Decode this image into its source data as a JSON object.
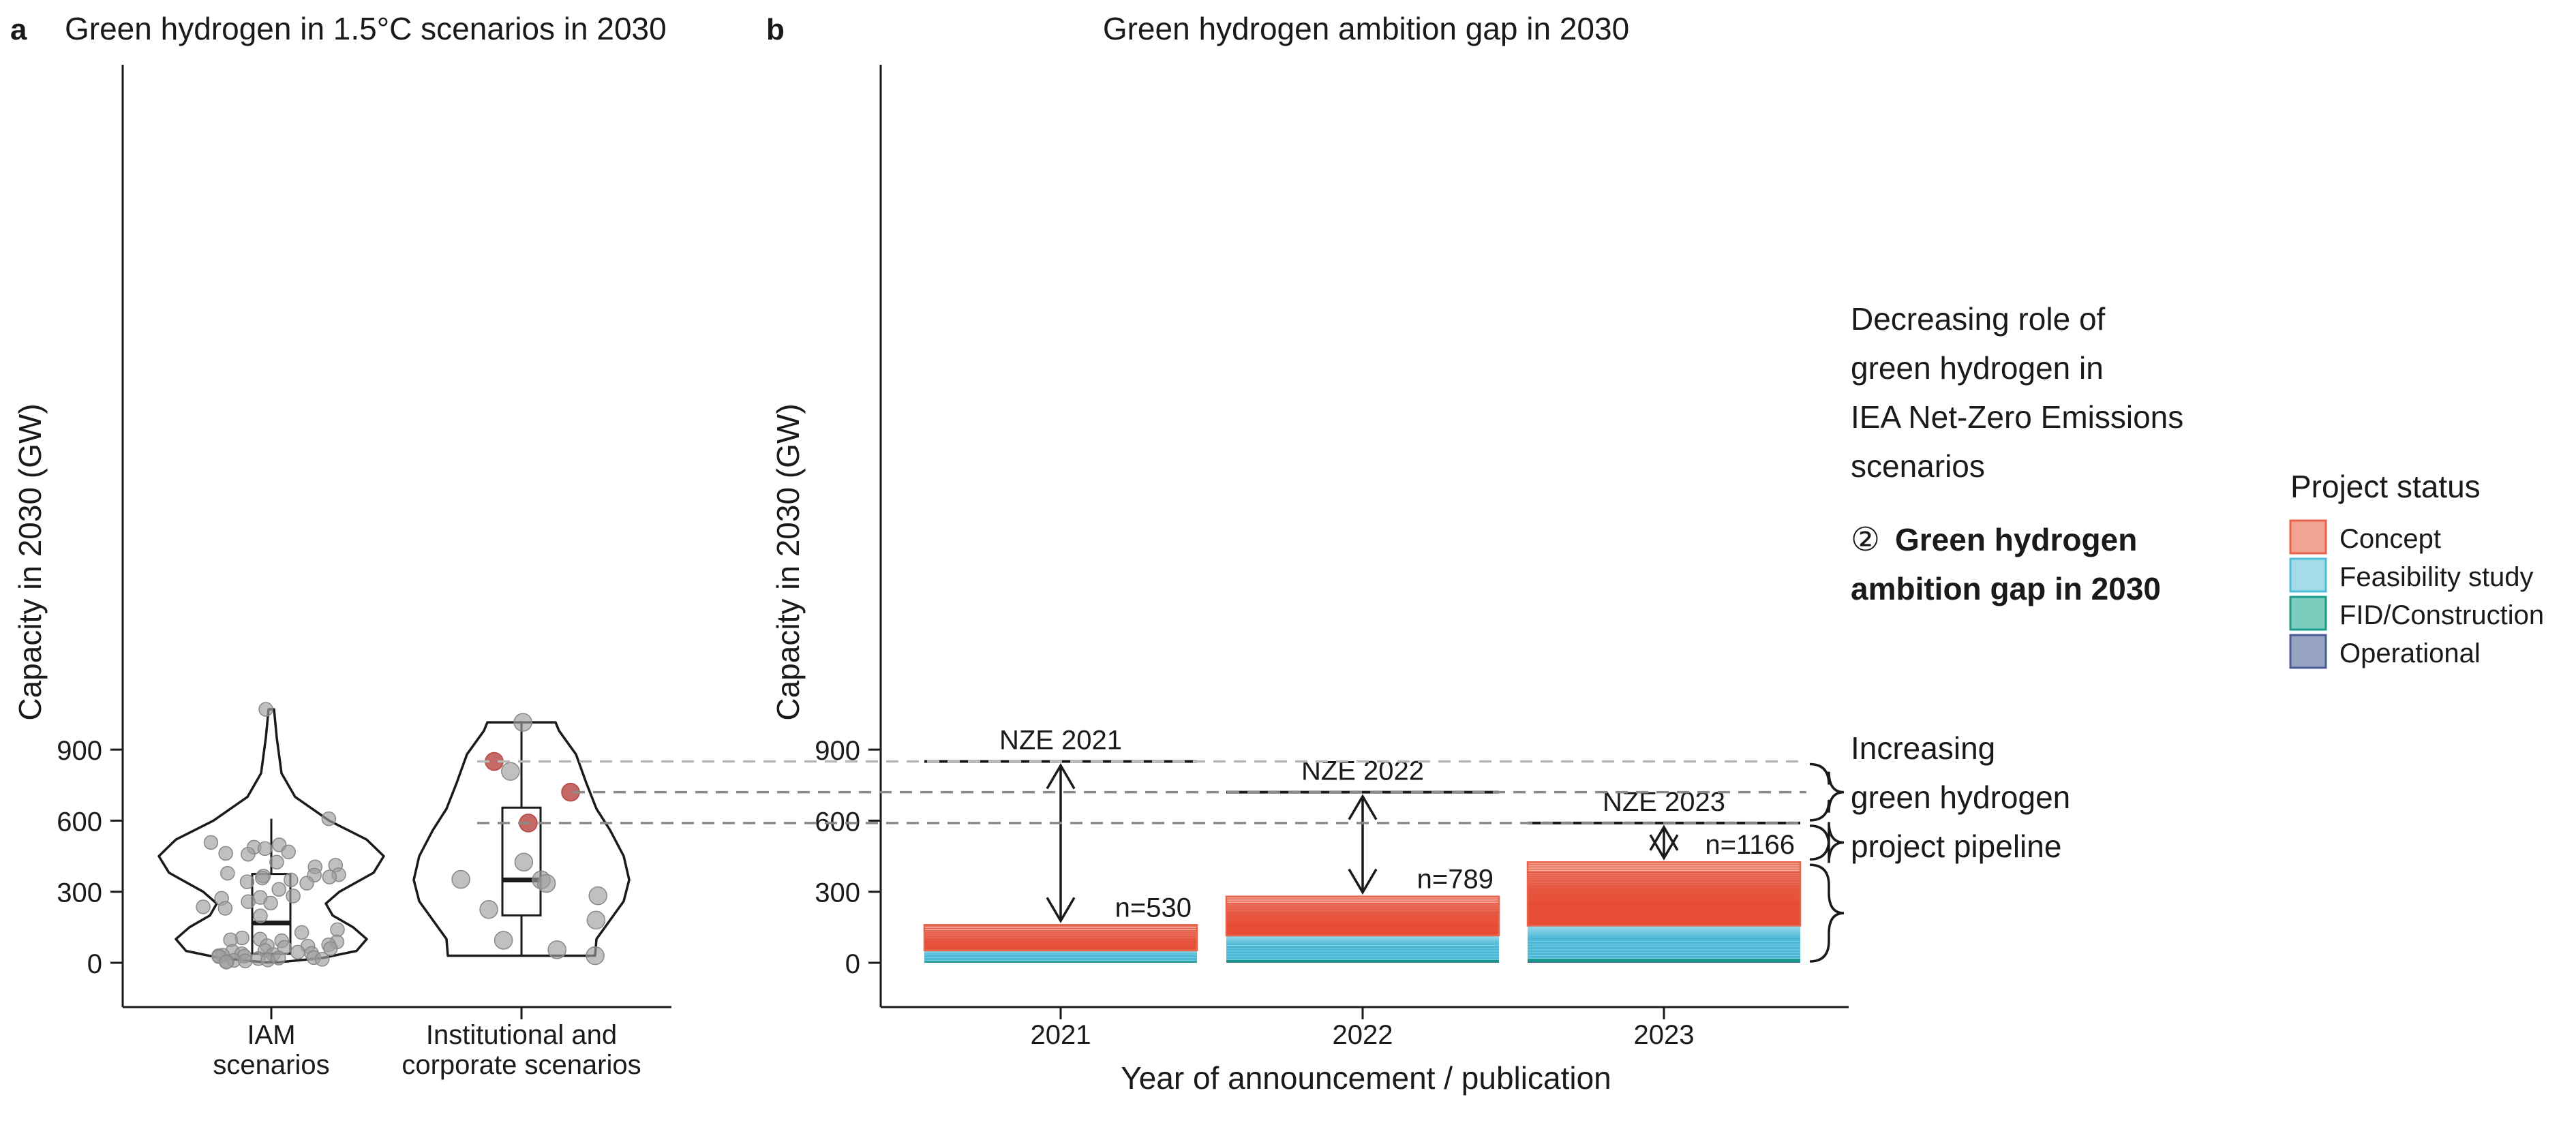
{
  "chart_data": [
    {
      "panel_letter": "a",
      "title": "Green hydrogen in 1.5°C scenarios in 2030",
      "type": "violin",
      "ylabel": "Capacity in 2030 (GW)",
      "ylim": [
        -35,
        1115
      ],
      "yticks": [
        0,
        300,
        600,
        900
      ],
      "categories": [
        "IAM\nscenarios",
        "Institutional and\ncorporate scenarios"
      ],
      "groups": [
        {
          "name": "IAM scenarios",
          "box": {
            "q1": 38,
            "median": 168,
            "q3": 375,
            "whisker_low": 2,
            "whisker_high": 608
          },
          "violin_range": [
            2,
            1070
          ],
          "points": [
            1070,
            608,
            508,
            498,
            488,
            482,
            468,
            462,
            458,
            425,
            412,
            405,
            378,
            372,
            370,
            366,
            362,
            358,
            350,
            342,
            336,
            310,
            282,
            276,
            272,
            258,
            252,
            236,
            230,
            198,
            140,
            128,
            105,
            100,
            97,
            93,
            88,
            76,
            72,
            70,
            65,
            60,
            52,
            48,
            45,
            40,
            38,
            35,
            32,
            30,
            28,
            26,
            22,
            20,
            18,
            15,
            12,
            10,
            8,
            5,
            3
          ],
          "color": "#9e9e9e"
        },
        {
          "name": "Institutional and corporate scenarios",
          "box": {
            "q1": 200,
            "median": 350,
            "q3": 655,
            "whisker_low": 30,
            "whisker_high": 1015
          },
          "violin_range": [
            30,
            1015
          ],
          "points": [
            1015,
            850,
            808,
            720,
            590,
            425,
            352,
            350,
            335,
            283,
            225,
            180,
            95,
            55,
            30
          ],
          "highlighted": [
            850,
            720,
            590
          ],
          "color": "#9e9e9e",
          "highlight_color": "#c0504d"
        }
      ]
    },
    {
      "panel_letter": "b",
      "title": "Green hydrogen ambition gap in 2030",
      "type": "bar",
      "xlabel": "Year of announcement / publication",
      "ylabel": "Capacity in 2030 (GW)",
      "ylim": [
        -35,
        1115
      ],
      "yticks": [
        0,
        300,
        600,
        900
      ],
      "categories": [
        "2021",
        "2022",
        "2023"
      ],
      "series": [
        {
          "name": "Operational",
          "values": [
            1,
            2,
            3
          ]
        },
        {
          "name": "FID/Construction",
          "values": [
            6,
            10,
            14
          ]
        },
        {
          "name": "Feasibility study",
          "values": [
            45,
            103,
            140
          ]
        },
        {
          "name": "Concept",
          "values": [
            108,
            165,
            268
          ]
        }
      ],
      "project_counts": [
        "n=530",
        "n=789",
        "n=1166"
      ],
      "nze": [
        {
          "label": "NZE 2021",
          "value": 850
        },
        {
          "label": "NZE 2022",
          "value": 720
        },
        {
          "label": "NZE 2023",
          "value": 590
        }
      ],
      "totals": [
        160,
        280,
        425
      ],
      "annotations": {
        "decreasing": [
          "Decreasing role of",
          "green hydrogen in",
          "IEA Net-Zero Emissions",
          "scenarios"
        ],
        "gap_symbol": "②",
        "gap": [
          "Green hydrogen",
          "ambition gap in 2030"
        ],
        "increasing": [
          "Increasing",
          "green hydrogen",
          "project pipeline"
        ]
      }
    }
  ],
  "legend": {
    "title": "Project status",
    "items": [
      {
        "label": "Concept",
        "color": "#f1a394",
        "stroke": "#e8634c"
      },
      {
        "label": "Feasibility study",
        "color": "#a6dce9",
        "stroke": "#4fbdd8"
      },
      {
        "label": "FID/Construction",
        "color": "#7dcdbe",
        "stroke": "#1b9b8a"
      },
      {
        "label": "Operational",
        "color": "#97a3c2",
        "stroke": "#4a5d94"
      }
    ]
  },
  "colors": {
    "concept_light": "#f2a595",
    "concept_dark": "#e74c35",
    "feasibility_light": "#a8e0ed",
    "feasibility_dark": "#4ab8d5",
    "fid": "#12968a",
    "operational": "#4a5d94"
  }
}
